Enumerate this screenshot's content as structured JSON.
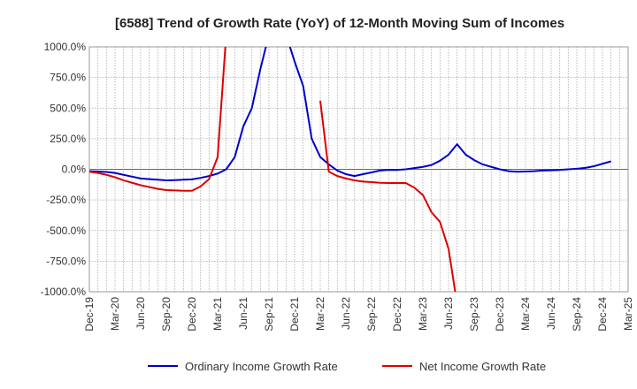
{
  "chart_data": {
    "type": "line",
    "title": "[6588]  Trend of Growth Rate (YoY) of 12-Month Moving Sum of Incomes",
    "xlabel": "",
    "ylabel": "",
    "ylim": [
      -1000,
      1000
    ],
    "y_ticks": [
      "1000.0%",
      "750.0%",
      "500.0%",
      "250.0%",
      "0.0%",
      "-250.0%",
      "-500.0%",
      "-750.0%",
      "-1000.0%"
    ],
    "y_tick_values": [
      1000,
      750,
      500,
      250,
      0,
      -250,
      -500,
      -750,
      -1000
    ],
    "x_ticks": [
      "Dec-19",
      "Mar-20",
      "Jun-20",
      "Sep-20",
      "Dec-20",
      "Mar-21",
      "Jun-21",
      "Sep-21",
      "Dec-21",
      "Mar-22",
      "Jun-22",
      "Sep-22",
      "Dec-22",
      "Mar-23",
      "Jun-23",
      "Sep-23",
      "Dec-23",
      "Mar-24",
      "Jun-24",
      "Sep-24",
      "Dec-24",
      "Mar-25"
    ],
    "grid": true,
    "legend_position": "bottom",
    "series": [
      {
        "name": "Ordinary Income Growth Rate",
        "color": "#0000cc",
        "points": [
          [
            "Dec-19",
            -15
          ],
          [
            "Jan-20",
            -18
          ],
          [
            "Feb-20",
            -22
          ],
          [
            "Mar-20",
            -30
          ],
          [
            "Apr-20",
            -45
          ],
          [
            "May-20",
            -60
          ],
          [
            "Jun-20",
            -75
          ],
          [
            "Jul-20",
            -80
          ],
          [
            "Aug-20",
            -85
          ],
          [
            "Sep-20",
            -90
          ],
          [
            "Oct-20",
            -88
          ],
          [
            "Nov-20",
            -85
          ],
          [
            "Dec-20",
            -82
          ],
          [
            "Jan-21",
            -70
          ],
          [
            "Feb-21",
            -55
          ],
          [
            "Mar-21",
            -35
          ],
          [
            "Apr-21",
            0
          ],
          [
            "May-21",
            100
          ],
          [
            "Jun-21",
            350
          ],
          [
            "Jul-21",
            500
          ],
          [
            "Aug-21",
            820
          ],
          [
            "Sep-21",
            1100
          ],
          [
            "Oct-21",
            null
          ],
          [
            "Nov-21",
            1100
          ],
          [
            "Dec-21",
            880
          ],
          [
            "Jan-22",
            680
          ],
          [
            "Feb-22",
            250
          ],
          [
            "Mar-22",
            100
          ],
          [
            "Apr-22",
            40
          ],
          [
            "May-22",
            -10
          ],
          [
            "Jun-22",
            -40
          ],
          [
            "Jul-22",
            -55
          ],
          [
            "Aug-22",
            -40
          ],
          [
            "Sep-22",
            -25
          ],
          [
            "Oct-22",
            -10
          ],
          [
            "Nov-22",
            -5
          ],
          [
            "Dec-22",
            -5
          ],
          [
            "Jan-23",
            0
          ],
          [
            "Feb-23",
            10
          ],
          [
            "Mar-23",
            20
          ],
          [
            "Apr-23",
            35
          ],
          [
            "May-23",
            70
          ],
          [
            "Jun-23",
            120
          ],
          [
            "Jul-23",
            205
          ],
          [
            "Aug-23",
            120
          ],
          [
            "Sep-23",
            75
          ],
          [
            "Oct-23",
            40
          ],
          [
            "Nov-23",
            20
          ],
          [
            "Dec-23",
            0
          ],
          [
            "Jan-24",
            -15
          ],
          [
            "Feb-24",
            -20
          ],
          [
            "Mar-24",
            -18
          ],
          [
            "Apr-24",
            -15
          ],
          [
            "May-24",
            -10
          ],
          [
            "Jun-24",
            -8
          ],
          [
            "Jul-24",
            -5
          ],
          [
            "Aug-24",
            0
          ],
          [
            "Sep-24",
            5
          ],
          [
            "Oct-24",
            12
          ],
          [
            "Nov-24",
            25
          ],
          [
            "Dec-24",
            45
          ],
          [
            "Jan-25",
            65
          ]
        ]
      },
      {
        "name": "Net Income Growth Rate",
        "color": "#dd0000",
        "points": [
          [
            "Dec-19",
            -20
          ],
          [
            "Jan-20",
            -30
          ],
          [
            "Feb-20",
            -45
          ],
          [
            "Mar-20",
            -65
          ],
          [
            "Apr-20",
            -90
          ],
          [
            "May-20",
            -110
          ],
          [
            "Jun-20",
            -130
          ],
          [
            "Jul-20",
            -145
          ],
          [
            "Aug-20",
            -160
          ],
          [
            "Sep-20",
            -170
          ],
          [
            "Oct-20",
            -172
          ],
          [
            "Nov-20",
            -175
          ],
          [
            "Dec-20",
            -175
          ],
          [
            "Jan-21",
            -140
          ],
          [
            "Feb-21",
            -80
          ],
          [
            "Mar-21",
            100
          ],
          [
            "Apr-21",
            1100
          ],
          [
            "May-21",
            null
          ],
          [
            "Jun-21",
            null
          ],
          [
            "Jul-21",
            null
          ],
          [
            "Aug-21",
            null
          ],
          [
            "Sep-21",
            null
          ],
          [
            "Oct-21",
            null
          ],
          [
            "Nov-21",
            null
          ],
          [
            "Dec-21",
            null
          ],
          [
            "Jan-22",
            null
          ],
          [
            "Feb-22",
            null
          ],
          [
            "Mar-22",
            560
          ],
          [
            "Apr-22",
            -20
          ],
          [
            "May-22",
            -55
          ],
          [
            "Jun-22",
            -75
          ],
          [
            "Jul-22",
            -90
          ],
          [
            "Aug-22",
            -100
          ],
          [
            "Sep-22",
            -105
          ],
          [
            "Oct-22",
            -110
          ],
          [
            "Nov-22",
            -112
          ],
          [
            "Dec-22",
            -112
          ],
          [
            "Jan-23",
            -112
          ],
          [
            "Feb-23",
            -150
          ],
          [
            "Mar-23",
            -210
          ],
          [
            "Apr-23",
            -350
          ],
          [
            "May-23",
            -430
          ],
          [
            "Jun-23",
            -650
          ],
          [
            "Jul-23",
            -1100
          ]
        ]
      }
    ]
  }
}
